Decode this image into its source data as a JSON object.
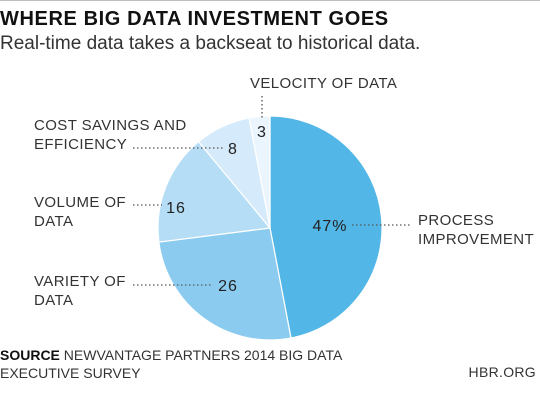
{
  "header": {
    "title": "WHERE BIG DATA INVESTMENT GOES",
    "subtitle": "Real-time data takes a backseat to historical data."
  },
  "chart_data": {
    "type": "pie",
    "unit": "%",
    "slices": [
      {
        "label_lines": [
          "PROCESS",
          "IMPROVEMENT"
        ],
        "value": 47,
        "value_label": "47%",
        "color": "#52b6e6"
      },
      {
        "label_lines": [
          "VARIETY OF",
          "DATA"
        ],
        "value": 26,
        "value_label": "26",
        "color": "#8ccbf0"
      },
      {
        "label_lines": [
          "VOLUME OF",
          "DATA"
        ],
        "value": 16,
        "value_label": "16",
        "color": "#b6ddf6"
      },
      {
        "label_lines": [
          "COST SAVINGS AND",
          "EFFICIENCY"
        ],
        "value": 8,
        "value_label": "8",
        "color": "#d5eafa"
      },
      {
        "label_lines": [
          "VELOCITY OF DATA"
        ],
        "value": 3,
        "value_label": "3",
        "color": "#ebf5fd"
      }
    ]
  },
  "footer": {
    "source_label": "SOURCE",
    "source_text": "NEWVANTAGE PARTNERS 2014 BIG DATA EXECUTIVE SURVEY",
    "brand": "HBR.ORG"
  }
}
